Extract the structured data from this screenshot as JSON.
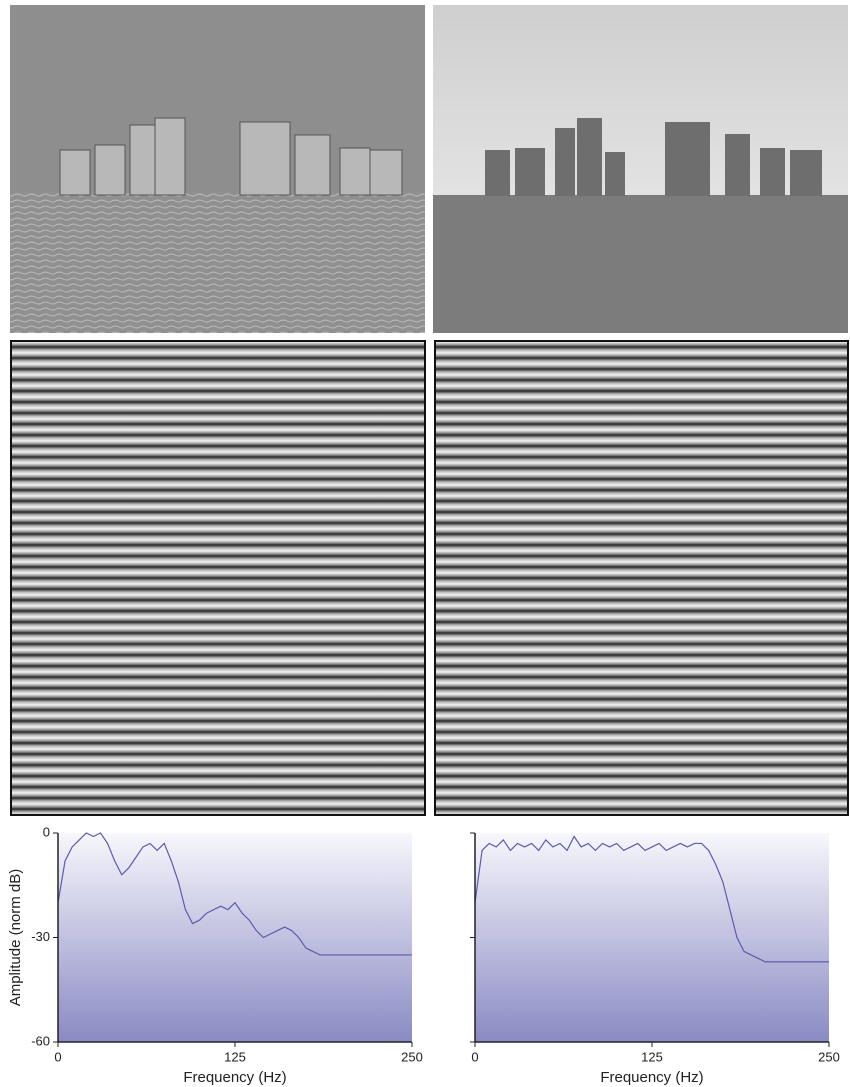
{
  "chart_data": [
    {
      "type": "line",
      "ylabel": "Amplitude (norm dB)",
      "xlabel": "Frequency (Hz)",
      "color": "#5c5cae",
      "x": [
        0,
        5,
        10,
        15,
        20,
        25,
        30,
        35,
        40,
        45,
        50,
        55,
        60,
        65,
        70,
        75,
        80,
        85,
        90,
        95,
        100,
        105,
        110,
        115,
        120,
        125,
        130,
        135,
        140,
        145,
        150,
        155,
        160,
        165,
        170,
        175,
        180,
        185,
        190,
        195,
        200,
        205,
        210,
        215,
        220,
        225,
        230,
        235,
        240,
        245,
        250
      ],
      "values": [
        -20,
        -8,
        -4,
        -2,
        0,
        -1,
        0,
        -3,
        -8,
        -12,
        -10,
        -7,
        -4,
        -3,
        -5,
        -3,
        -8,
        -14,
        -22,
        -26,
        -25,
        -23,
        -22,
        -21,
        -22,
        -20,
        -23,
        -25,
        -28,
        -30,
        -29,
        -28,
        -27,
        -28,
        -30,
        -33,
        -34,
        -35,
        -35,
        -35,
        -35,
        -35,
        -35,
        -35,
        -35,
        -35,
        -35,
        -35,
        -35,
        -35,
        -35
      ],
      "xlim": [
        0,
        250
      ],
      "xticks": [
        0,
        125,
        250
      ],
      "ylim": [
        -60,
        0
      ],
      "yticks": [
        0,
        -30,
        -60
      ]
    },
    {
      "type": "line",
      "xlabel": "Frequency (Hz)",
      "color": "#5c5cae",
      "x": [
        0,
        5,
        10,
        15,
        20,
        25,
        30,
        35,
        40,
        45,
        50,
        55,
        60,
        65,
        70,
        75,
        80,
        85,
        90,
        95,
        100,
        105,
        110,
        115,
        120,
        125,
        130,
        135,
        140,
        145,
        150,
        155,
        160,
        165,
        170,
        175,
        180,
        185,
        190,
        195,
        200,
        205,
        210,
        215,
        220,
        225,
        230,
        235,
        240,
        245,
        250
      ],
      "values": [
        -20,
        -5,
        -3,
        -4,
        -2,
        -5,
        -3,
        -4,
        -3,
        -5,
        -2,
        -4,
        -3,
        -5,
        -1,
        -4,
        -3,
        -5,
        -3,
        -4,
        -3,
        -5,
        -4,
        -3,
        -5,
        -4,
        -3,
        -5,
        -4,
        -3,
        -4,
        -3,
        -3,
        -5,
        -9,
        -14,
        -22,
        -30,
        -34,
        -35,
        -36,
        -37,
        -37,
        -37,
        -37,
        -37,
        -37,
        -37,
        -37,
        -37,
        -37
      ],
      "xlim": [
        0,
        250
      ],
      "xticks": [
        0,
        125,
        250
      ],
      "ylim": [
        -60,
        0
      ],
      "yticks": [
        0,
        -30,
        -60
      ]
    }
  ]
}
